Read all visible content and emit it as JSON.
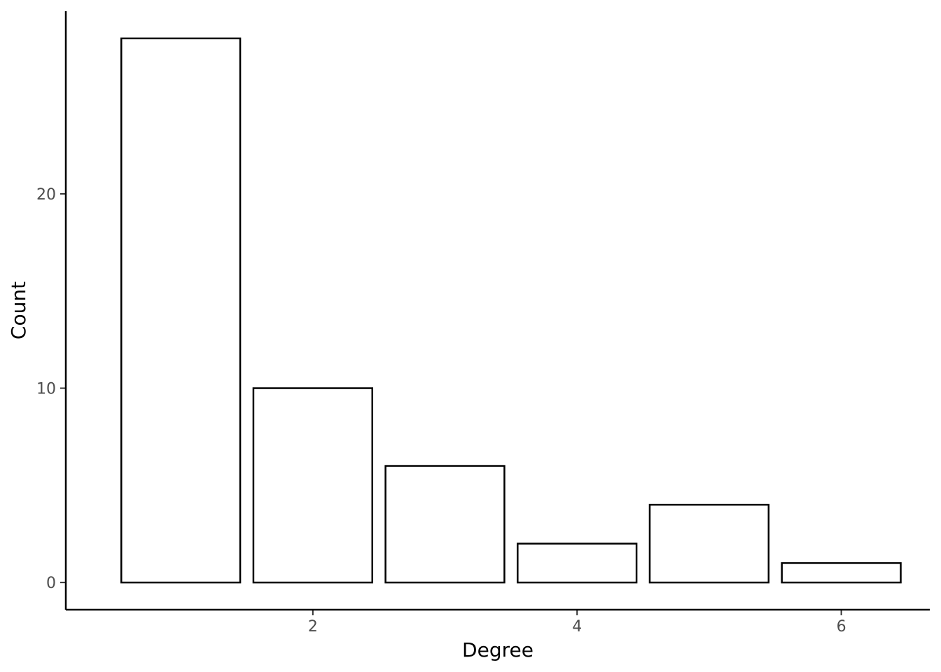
{
  "chart_data": {
    "type": "bar",
    "title": "",
    "xlabel": "Degree",
    "ylabel": "Count",
    "x": [
      1,
      2,
      3,
      4,
      5,
      6
    ],
    "values": [
      28,
      10,
      6,
      2,
      4,
      1
    ],
    "xlim": [
      0.13,
      6.67
    ],
    "ylim": [
      -1.4,
      29.4
    ],
    "xticks": [
      2,
      4,
      6
    ],
    "yticks": [
      0,
      10,
      20
    ],
    "grid": false,
    "legend": "none",
    "bar_fill": "#ffffff",
    "bar_stroke": "#000000"
  }
}
